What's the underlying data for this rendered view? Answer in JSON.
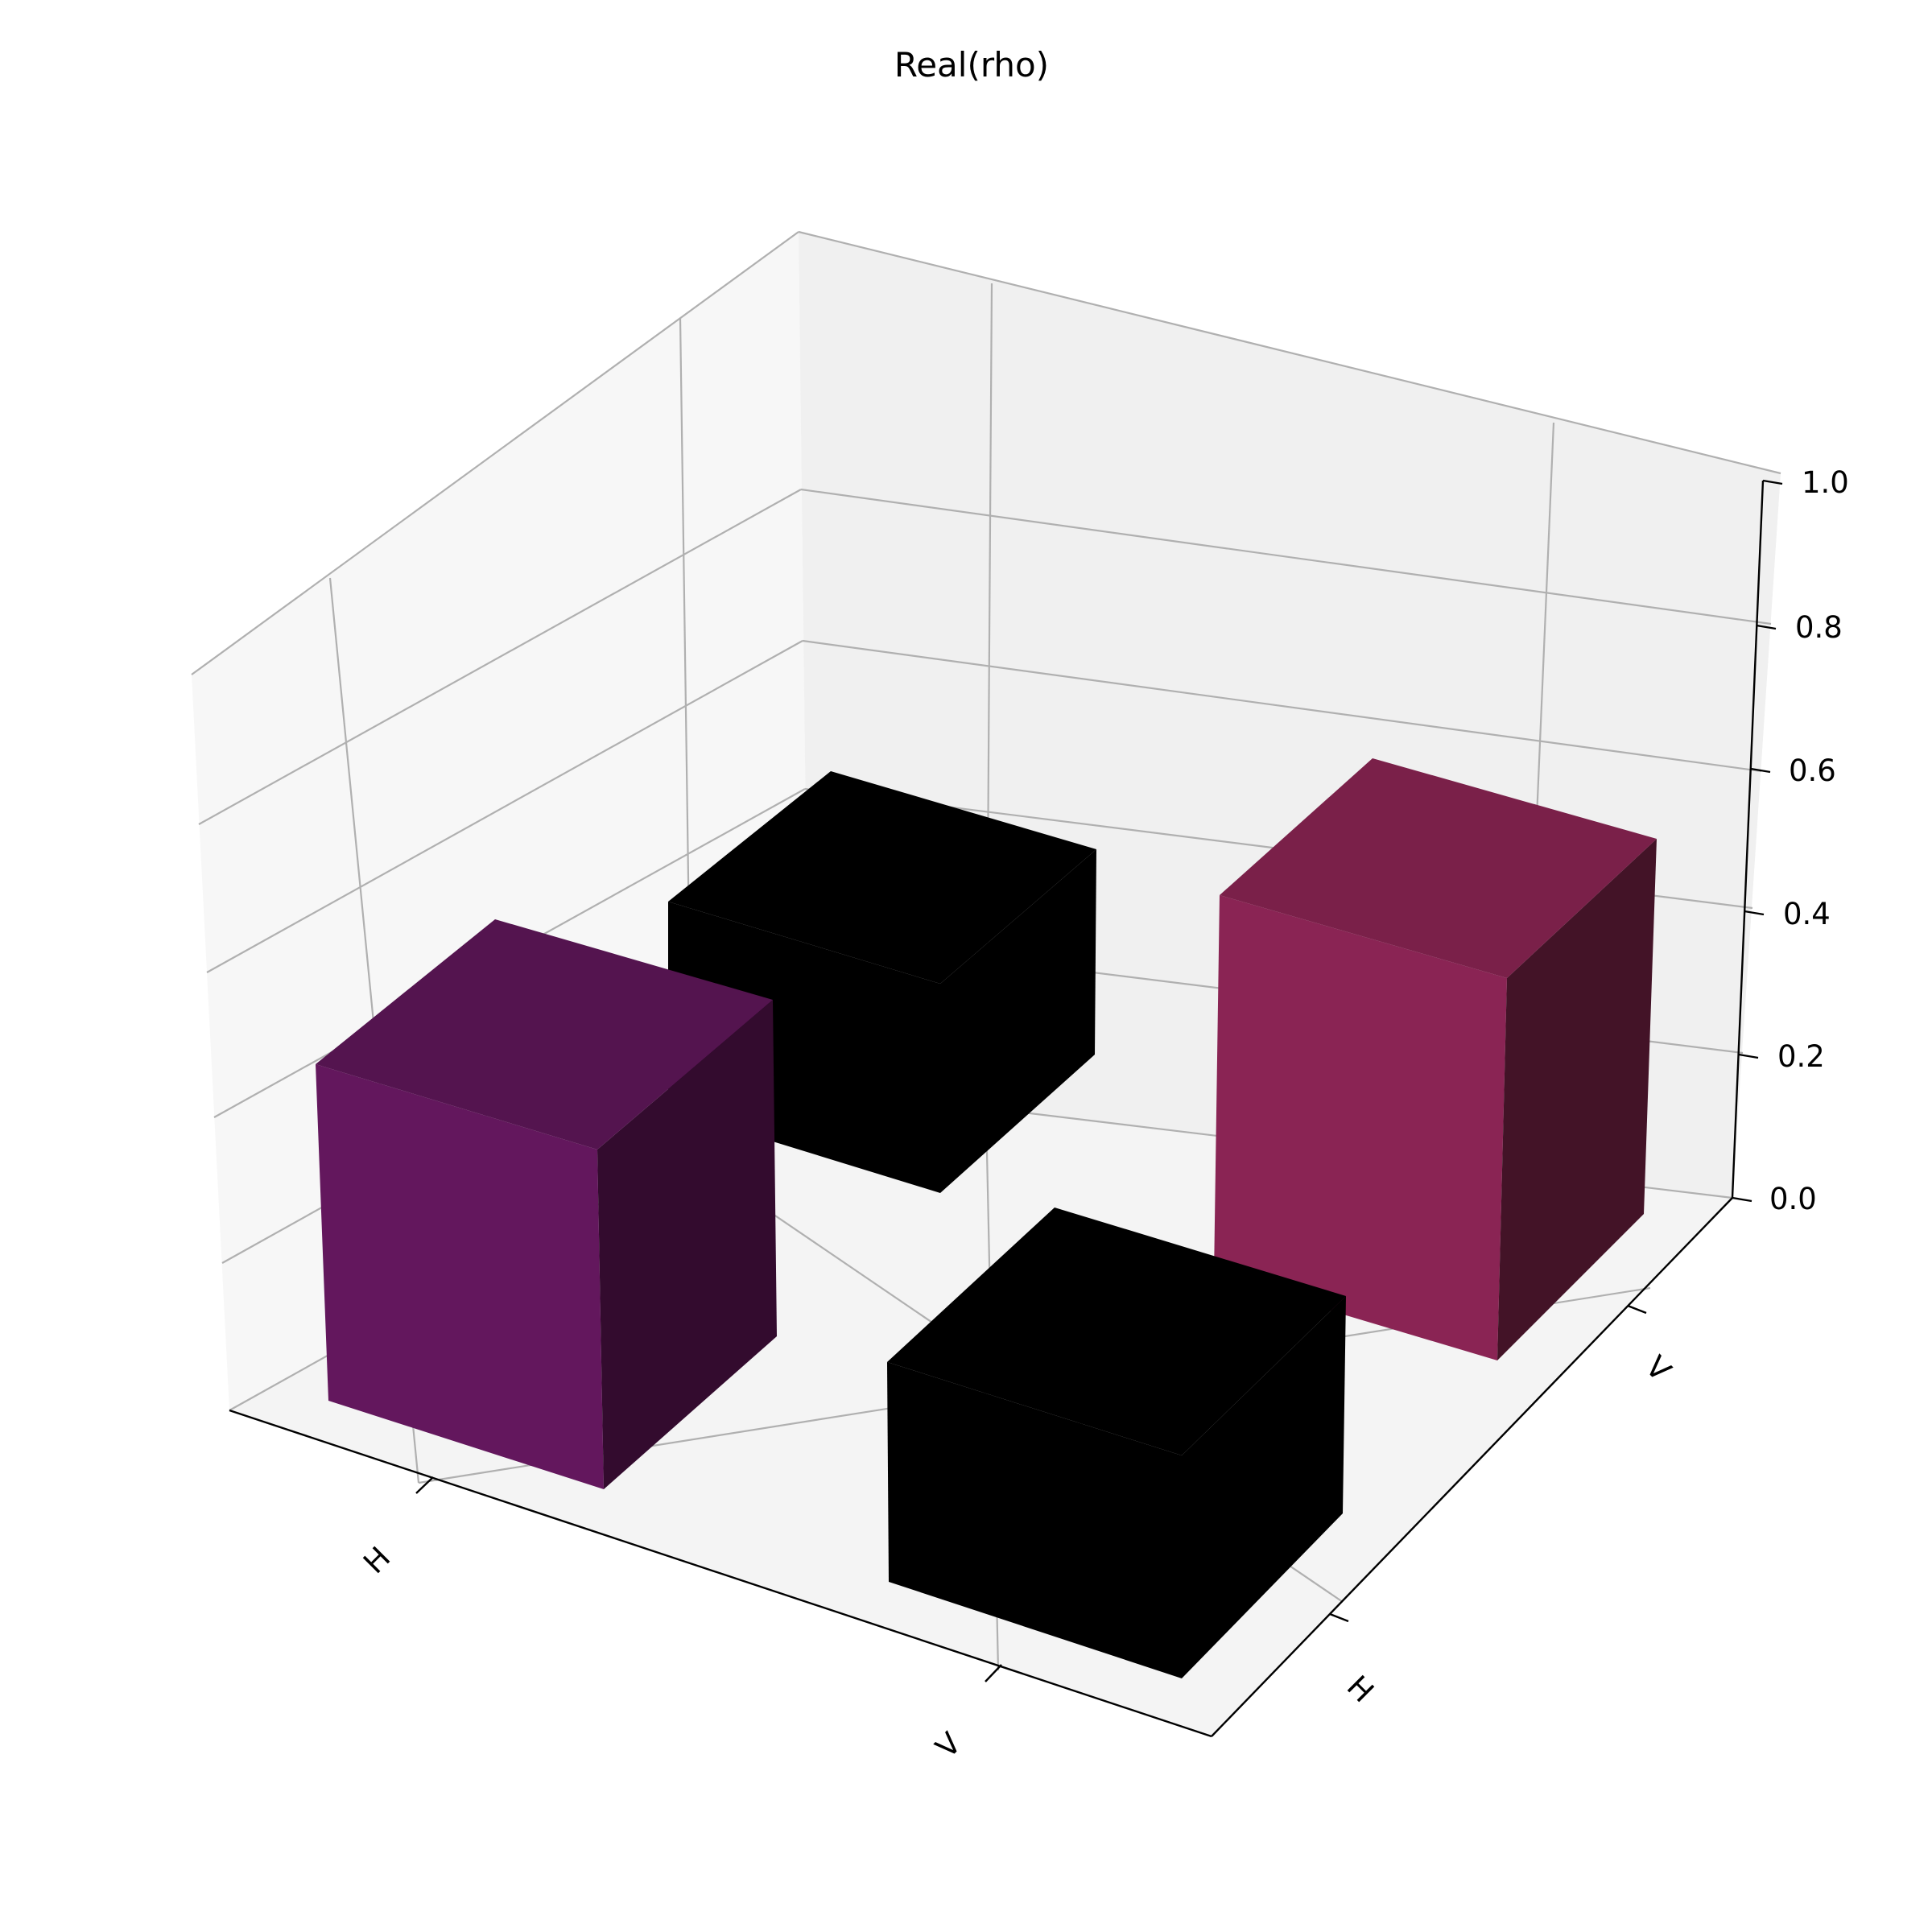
{
  "chart_data": {
    "type": "bar3d",
    "title": "Real(rho)",
    "x_categories": [
      "H",
      "V"
    ],
    "y_categories": [
      "H",
      "V"
    ],
    "z_ticks": [
      "0.0",
      "0.2",
      "0.4",
      "0.6",
      "0.8",
      "1.0"
    ],
    "zlim": [
      0,
      1
    ],
    "grid": true,
    "bars": [
      {
        "x": "H",
        "y": "H",
        "value": 0.47
      },
      {
        "x": "H",
        "y": "V",
        "value": 0.0
      },
      {
        "x": "V",
        "y": "H",
        "value": 0.0
      },
      {
        "x": "V",
        "y": "V",
        "value": 0.53
      }
    ],
    "colors": {
      "H_H": "#63175d",
      "H_V": "#000000",
      "V_H": "#000000",
      "V_V": "#8a2454"
    }
  }
}
